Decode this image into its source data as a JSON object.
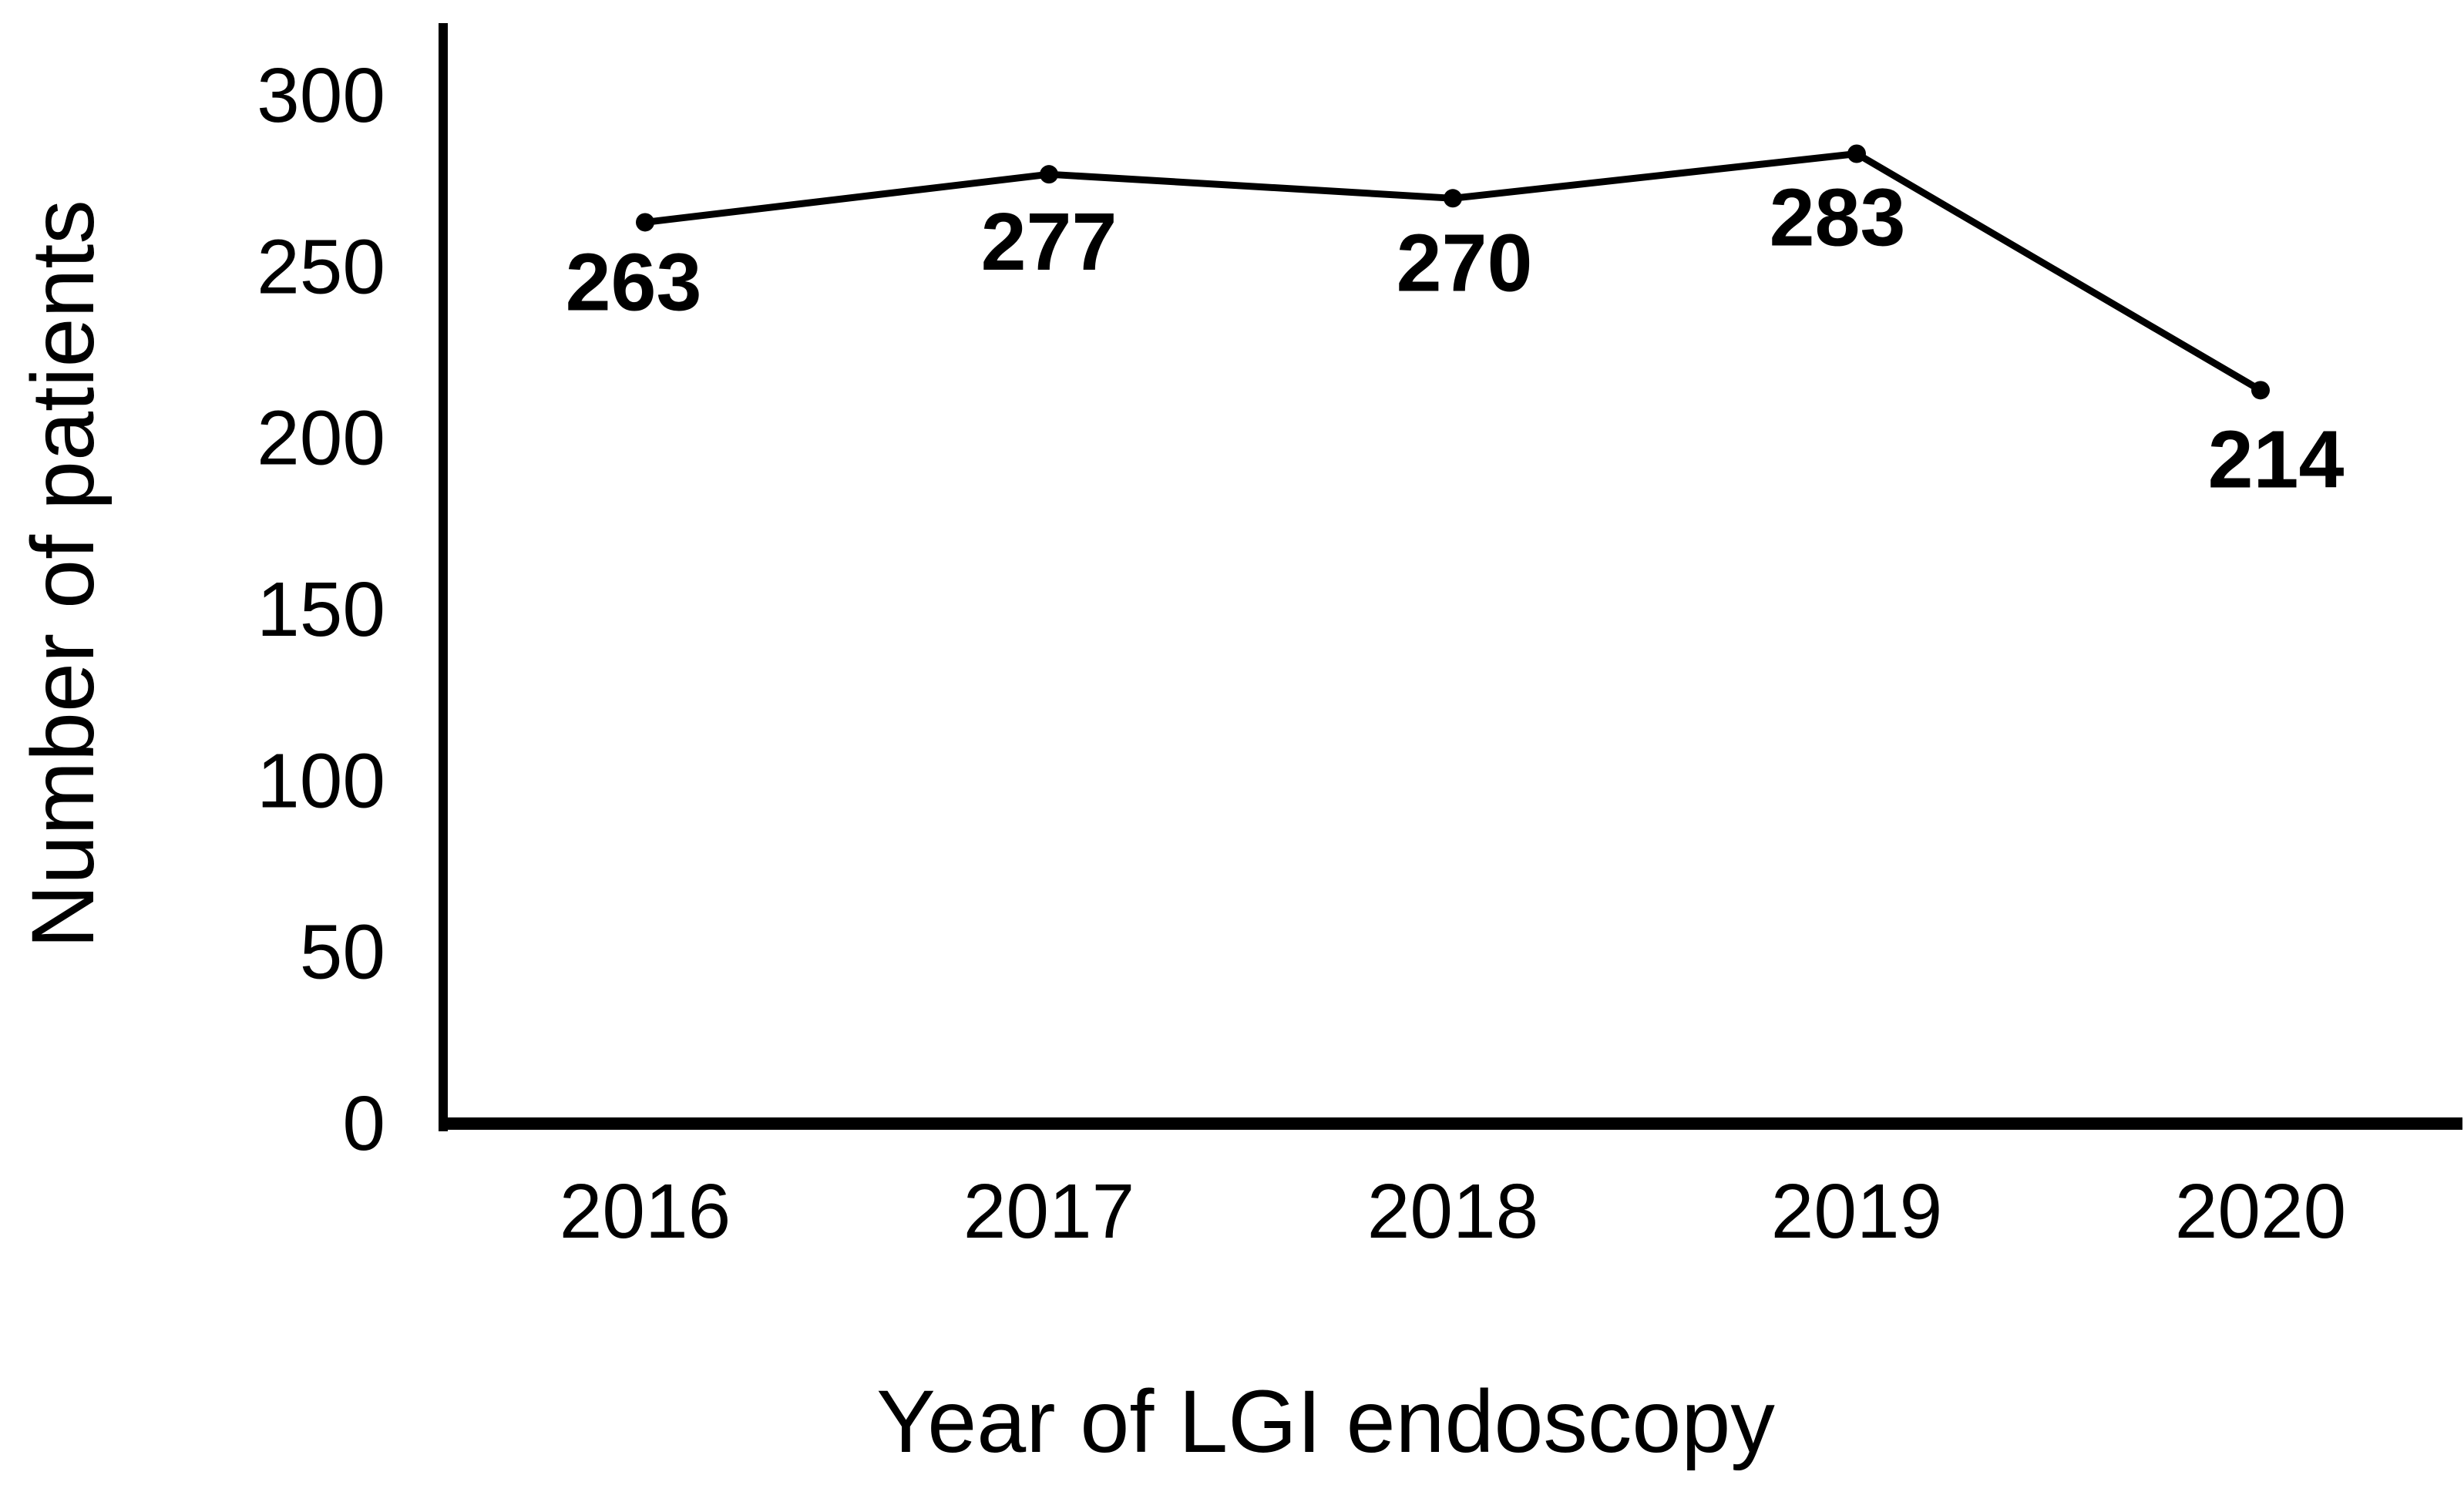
{
  "figure": {
    "background_color": "#ffffff",
    "ink_color": "#000000"
  },
  "chart_data": {
    "type": "line",
    "title": "",
    "categories": [
      "2016",
      "2017",
      "2018",
      "2019",
      "2020"
    ],
    "values": [
      263,
      277,
      270,
      283,
      214
    ],
    "data_labels": [
      "263",
      "277",
      "270",
      "283",
      "214"
    ],
    "xlabel": "Year of LGI endoscopy",
    "ylabel": "Number of patients",
    "y_ticks": [
      0,
      50,
      100,
      150,
      200,
      250,
      300
    ],
    "ylim": [
      0,
      310
    ],
    "grid": false,
    "legend": false,
    "marker": "dot",
    "line_color": "#000000",
    "marker_color": "#000000"
  }
}
